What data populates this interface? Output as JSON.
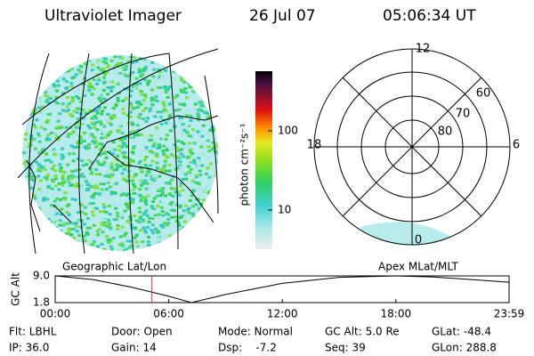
{
  "header": {
    "instrument": "Ultraviolet Imager",
    "date": "26 Jul 07",
    "time": "05:06:34 UT"
  },
  "colorbar": {
    "label": "photon cm⁻²s⁻¹",
    "ticks": [
      10,
      100
    ],
    "lim": [
      3.2,
      565
    ],
    "log": true
  },
  "polar": {
    "mlt_labels": [
      "12",
      "18",
      "6",
      "0"
    ],
    "lat_labels": [
      "60",
      "70",
      "80"
    ]
  },
  "frame_labels": [
    "Geographic Lat/Lon",
    "Apex MLat/MLT"
  ],
  "chart_data": {
    "type": "line",
    "ylabel": "GC Alt",
    "x": [
      0,
      2,
      4,
      6,
      7.2,
      9,
      12,
      15,
      18,
      20,
      22,
      23.98
    ],
    "values": [
      9.0,
      8.0,
      6.0,
      3.5,
      1.8,
      4.0,
      7.0,
      8.6,
      9.0,
      8.7,
      8.0,
      7.3
    ],
    "color": "#000000",
    "marker_x": 5.11,
    "marker_color": "#c04040",
    "xlim": [
      0,
      23.98
    ],
    "ylim": [
      1.8,
      9.0
    ],
    "xticks": [
      {
        "value": 0,
        "label": "00:00"
      },
      {
        "value": 6,
        "label": "06:00"
      },
      {
        "value": 12,
        "label": "12:00"
      },
      {
        "value": 18,
        "label": "18:00"
      },
      {
        "value": 23.98,
        "label": "23:59"
      }
    ],
    "yticks": [
      {
        "value": 9.0,
        "label": "9.0"
      },
      1.8
    ]
  },
  "footer": {
    "rows": [
      [
        "Flt: LBHL",
        "Door: Open",
        "Mode: Normal",
        "GC Alt: 5.0 Re",
        "GLat: -48.4"
      ],
      [
        "IP: 36.0",
        "Gain: 14",
        "Dsp:    -7.2",
        "Seq: 39",
        "GLon: 288.8"
      ]
    ]
  }
}
